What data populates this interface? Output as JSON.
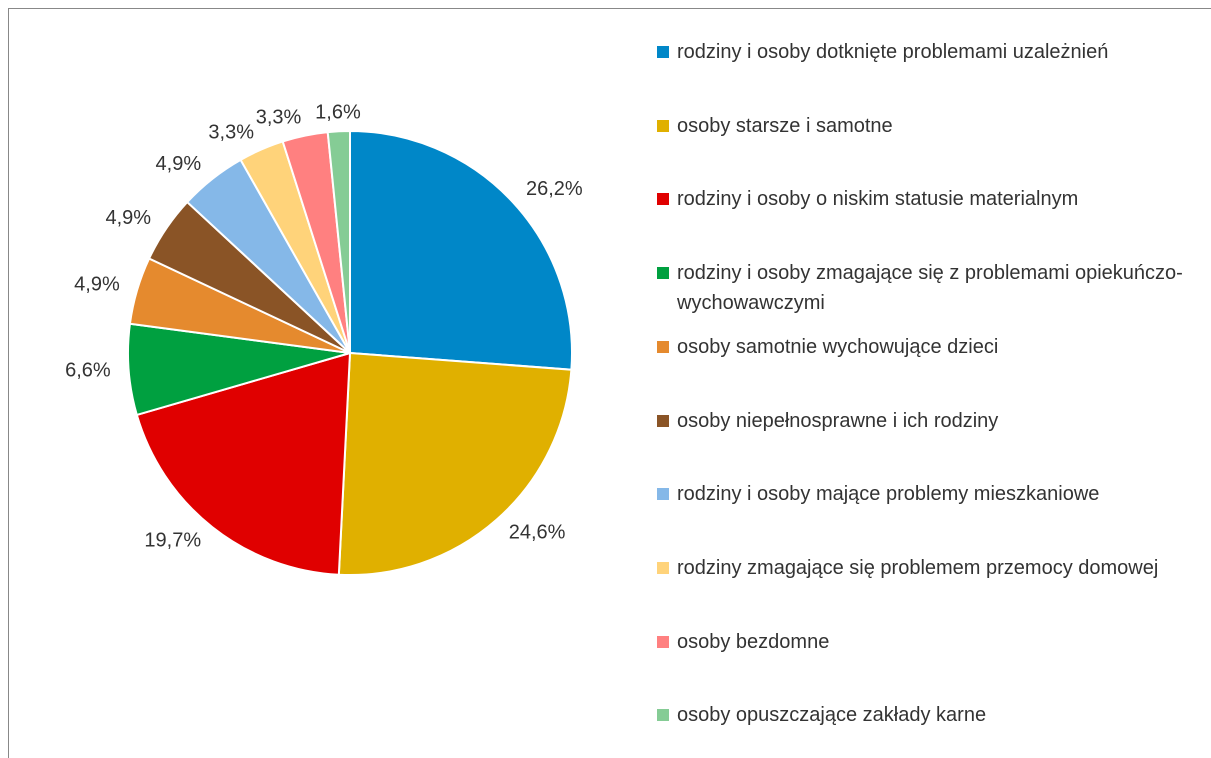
{
  "chart_data": {
    "type": "pie",
    "categories": [
      "rodziny i osoby dotknięte problemami uzależnień",
      "osoby starsze i samotne",
      "rodziny i osoby o niskim statusie materialnym",
      "rodziny i osoby zmagające się z problemami opiekuńczo-wychowawczymi",
      "osoby samotnie wychowujące dzieci",
      "osoby niepełnosprawne i ich rodziny",
      "rodziny i osoby mające problemy mieszkaniowe",
      "rodziny zmagające się problemem przemocy domowej",
      "osoby bezdomne",
      "osoby opuszczające zakłady karne"
    ],
    "values": [
      26.2,
      24.6,
      19.7,
      6.6,
      4.9,
      4.9,
      4.9,
      3.3,
      3.3,
      1.6
    ],
    "value_labels": [
      "26,2%",
      "24,6%",
      "19,7%",
      "6,6%",
      "4,9%",
      "4,9%",
      "4,9%",
      "3,3%",
      "3,3%",
      "1,6%"
    ],
    "colors": [
      "#0087c8",
      "#e0b000",
      "#e00000",
      "#00a040",
      "#e58a2e",
      "#8a5426",
      "#85b8e8",
      "#ffd37a",
      "#ff8080",
      "#85cc95"
    ],
    "legend": "right"
  }
}
